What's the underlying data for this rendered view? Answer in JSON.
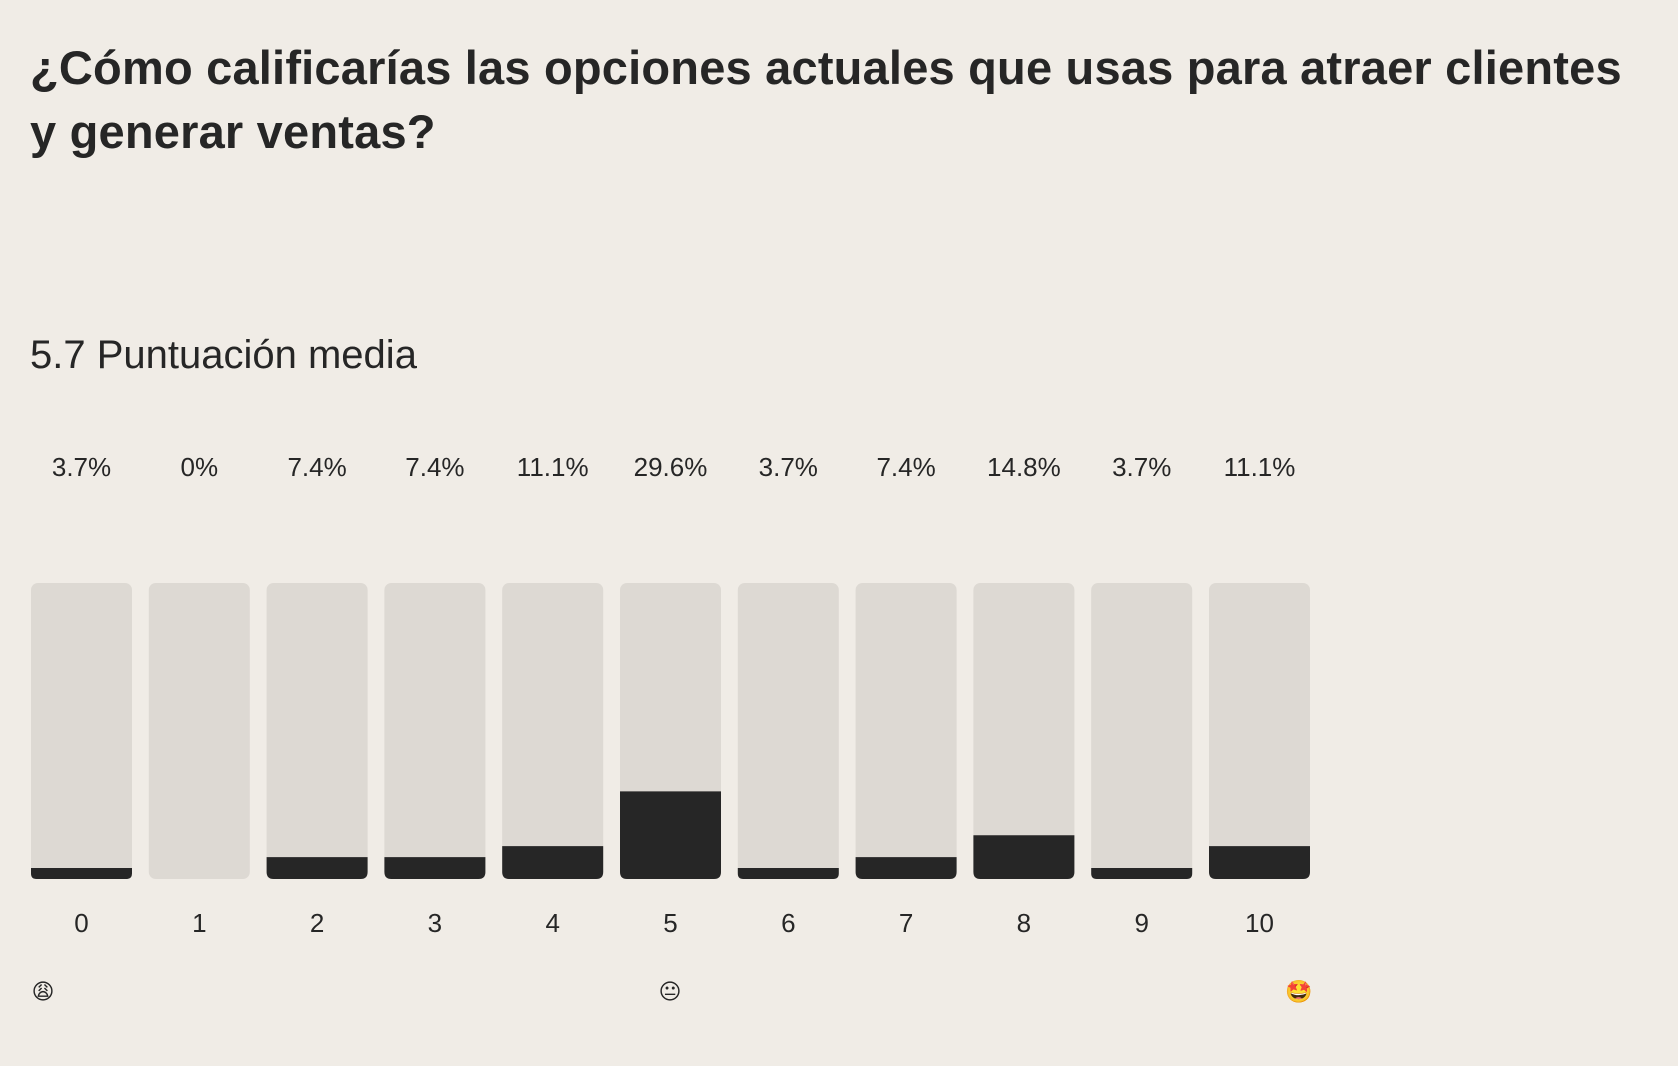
{
  "question": {
    "title": "¿Cómo calificarías las opciones actuales que usas para atraer clientes y generar ventas?"
  },
  "summary": {
    "average_text": "5.7 Puntuación media"
  },
  "scale_emojis": {
    "low": "😩",
    "mid": "😐",
    "high": "🤩"
  },
  "colors": {
    "background": "#f0ece6",
    "track": "#ddd9d3",
    "fill": "#262626",
    "text": "#262626"
  },
  "chart_data": {
    "type": "bar",
    "title": "¿Cómo calificarías las opciones actuales que usas para atraer clientes y generar ventas?",
    "xlabel": "",
    "ylabel": "",
    "ylim": [
      0,
      100
    ],
    "categories": [
      "0",
      "1",
      "2",
      "3",
      "4",
      "5",
      "6",
      "7",
      "8",
      "9",
      "10"
    ],
    "values": [
      3.7,
      0,
      7.4,
      7.4,
      11.1,
      29.6,
      3.7,
      7.4,
      14.8,
      3.7,
      11.1
    ],
    "value_labels": [
      "3.7%",
      "0%",
      "7.4%",
      "7.4%",
      "11.1%",
      "29.6%",
      "3.7%",
      "7.4%",
      "14.8%",
      "3.7%",
      "11.1%"
    ],
    "grid": false,
    "legend": "none"
  }
}
